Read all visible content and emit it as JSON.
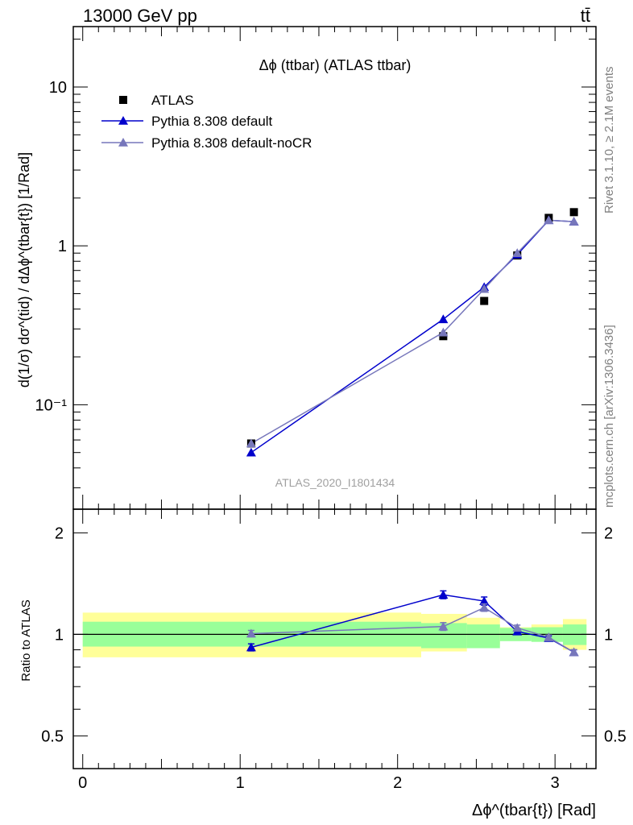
{
  "header": {
    "energy_label": "13000 GeV pp",
    "process_label": "tt̄"
  },
  "side": {
    "rivet_label": "Rivet 3.1.10, ≥ 2.1M events",
    "mcplots_label": "mcplots.cern.ch [arXiv:1306.3436]"
  },
  "watermark": "ATLAS_2020_I1801434",
  "chart_data": [
    {
      "type": "scatter",
      "title": "Δϕ (ttbar) (ATLAS ttbar)",
      "ylabel": "d(1/σ) dσ^(tid) / dΔϕ^(tbar{t}) [1/Rad]",
      "yscale": "log",
      "ylim": [
        0.022,
        24
      ],
      "xlim": [
        -0.06,
        3.26
      ],
      "y_ticks": [
        {
          "v": 0.1,
          "label": "10⁻¹"
        },
        {
          "v": 1,
          "label": "1"
        },
        {
          "v": 10,
          "label": "10"
        }
      ],
      "legend": {
        "placement": "top-left",
        "entries": [
          "ATLAS",
          "Pythia 8.308 default",
          "Pythia 8.308 default-noCR"
        ]
      },
      "series": [
        {
          "name": "ATLAS",
          "marker": "square",
          "color": "#000000",
          "x": [
            1.07,
            2.29,
            2.55,
            2.76,
            2.96,
            3.12
          ],
          "y": [
            0.057,
            0.27,
            0.45,
            0.87,
            1.5,
            1.63
          ]
        },
        {
          "name": "Pythia 8.308 default",
          "marker": "triangle",
          "color": "#0000cc",
          "x": [
            1.07,
            2.29,
            2.55,
            2.76,
            2.96,
            3.12
          ],
          "y": [
            0.05,
            0.345,
            0.55,
            0.88,
            1.45,
            1.42
          ]
        },
        {
          "name": "Pythia 8.308 default-noCR",
          "marker": "triangle",
          "color": "#7777bb",
          "x": [
            1.07,
            2.29,
            2.55,
            2.76,
            2.96,
            3.12
          ],
          "y": [
            0.057,
            0.285,
            0.535,
            0.9,
            1.45,
            1.42
          ]
        }
      ]
    },
    {
      "type": "scatter",
      "ylabel": "Ratio to ATLAS",
      "xlabel": "Δϕ^(tbar{t}) [Rad]",
      "yscale": "log",
      "ylim": [
        0.4,
        2.35
      ],
      "xlim": [
        -0.06,
        3.26
      ],
      "x_ticks": [
        0,
        1,
        2,
        3
      ],
      "y_ticks": [
        {
          "v": 0.5,
          "label": "0.5"
        },
        {
          "v": 1,
          "label": "1"
        },
        {
          "v": 2,
          "label": "2"
        }
      ],
      "bands": {
        "edges": [
          0,
          2.15,
          2.44,
          2.65,
          2.85,
          3.05,
          3.2
        ],
        "inner_lo": [
          0.92,
          0.91,
          0.91,
          0.955,
          0.95,
          0.93
        ],
        "inner_hi": [
          1.09,
          1.08,
          1.07,
          1.045,
          1.05,
          1.07
        ],
        "outer_lo": [
          0.855,
          0.89,
          0.93,
          0.965,
          0.97,
          0.9
        ],
        "outer_hi": [
          1.16,
          1.15,
          1.12,
          1.05,
          1.07,
          1.11
        ],
        "inner_color": "#99ff99",
        "outer_color": "#ffff99"
      },
      "series": [
        {
          "name": "Pythia 8.308 default",
          "color": "#0000cc",
          "x": [
            1.07,
            2.29,
            2.55,
            2.76,
            2.96,
            3.12
          ],
          "y": [
            0.915,
            1.31,
            1.255,
            1.02,
            0.975,
            0.885
          ],
          "err": [
            0.022,
            0.035,
            0.035,
            0.02,
            0.015,
            0.015
          ]
        },
        {
          "name": "Pythia 8.308 default-noCR",
          "color": "#7777bb",
          "x": [
            1.07,
            2.29,
            2.55,
            2.76,
            2.96,
            3.12
          ],
          "y": [
            1.005,
            1.055,
            1.2,
            1.045,
            0.98,
            0.885
          ],
          "err": [
            0.022,
            0.028,
            0.03,
            0.02,
            0.015,
            0.015
          ]
        }
      ]
    }
  ]
}
